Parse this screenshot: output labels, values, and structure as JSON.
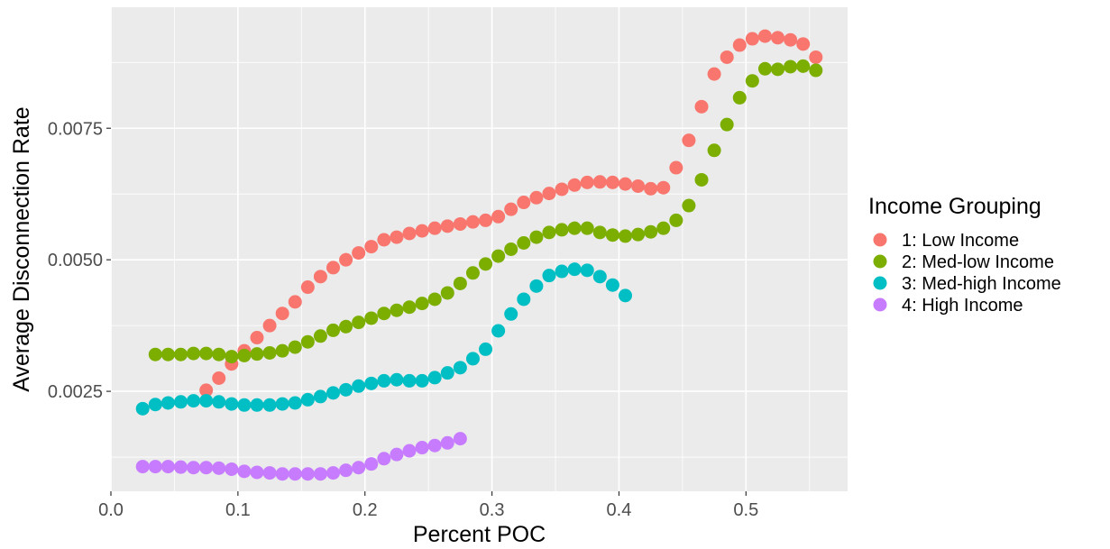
{
  "chart_data": {
    "type": "scatter",
    "xlabel": "Percent POC",
    "ylabel": "Average Disconnection Rate",
    "xlim": [
      0.0,
      0.58
    ],
    "ylim": [
      0.0006,
      0.0098
    ],
    "x_ticks": [
      0.0,
      0.1,
      0.2,
      0.3,
      0.4,
      0.5
    ],
    "x_tick_labels": [
      "0.0",
      "0.1",
      "0.2",
      "0.3",
      "0.4",
      "0.5"
    ],
    "y_ticks": [
      0.0025,
      0.005,
      0.0075
    ],
    "y_tick_labels": [
      "0.0025",
      "0.0050",
      "0.0075"
    ],
    "grid": true,
    "panel_background": "#ebebeb",
    "legend": {
      "title": "Income Grouping",
      "position": "right"
    },
    "series": [
      {
        "name": "1: Low Income",
        "color": "#f8766d",
        "x": [
          0.075,
          0.085,
          0.095,
          0.105,
          0.115,
          0.125,
          0.135,
          0.145,
          0.155,
          0.165,
          0.175,
          0.185,
          0.195,
          0.205,
          0.215,
          0.225,
          0.235,
          0.245,
          0.255,
          0.265,
          0.275,
          0.285,
          0.295,
          0.305,
          0.315,
          0.325,
          0.335,
          0.345,
          0.355,
          0.365,
          0.375,
          0.385,
          0.395,
          0.405,
          0.415,
          0.425,
          0.435,
          0.445,
          0.455,
          0.465,
          0.475,
          0.485,
          0.495,
          0.505,
          0.515,
          0.525,
          0.535,
          0.545,
          0.555
        ],
        "y": [
          0.00252,
          0.00275,
          0.00302,
          0.00327,
          0.00352,
          0.00375,
          0.00398,
          0.0042,
          0.00448,
          0.00468,
          0.00485,
          0.005,
          0.00513,
          0.00525,
          0.00538,
          0.00543,
          0.0055,
          0.00555,
          0.0056,
          0.00564,
          0.00568,
          0.00572,
          0.00575,
          0.00582,
          0.00596,
          0.00609,
          0.00618,
          0.00626,
          0.00634,
          0.00642,
          0.00647,
          0.00648,
          0.00647,
          0.00644,
          0.0064,
          0.00635,
          0.00637,
          0.00675,
          0.00727,
          0.00791,
          0.00853,
          0.00885,
          0.00908,
          0.0092,
          0.00925,
          0.00922,
          0.00918,
          0.0091,
          0.00885
        ]
      },
      {
        "name": "2: Med-low Income",
        "color": "#7cae00",
        "x": [
          0.035,
          0.045,
          0.055,
          0.065,
          0.075,
          0.085,
          0.095,
          0.105,
          0.115,
          0.125,
          0.135,
          0.145,
          0.155,
          0.165,
          0.175,
          0.185,
          0.195,
          0.205,
          0.215,
          0.225,
          0.235,
          0.245,
          0.255,
          0.265,
          0.275,
          0.285,
          0.295,
          0.305,
          0.315,
          0.325,
          0.335,
          0.345,
          0.355,
          0.365,
          0.375,
          0.385,
          0.395,
          0.405,
          0.415,
          0.425,
          0.435,
          0.445,
          0.455,
          0.465,
          0.475,
          0.485,
          0.495,
          0.505,
          0.515,
          0.525,
          0.535,
          0.545,
          0.555
        ],
        "y": [
          0.0032,
          0.0032,
          0.0032,
          0.00322,
          0.00322,
          0.0032,
          0.00316,
          0.00318,
          0.00321,
          0.00323,
          0.00327,
          0.00334,
          0.00344,
          0.00355,
          0.00366,
          0.00373,
          0.00381,
          0.00389,
          0.00398,
          0.00404,
          0.0041,
          0.00417,
          0.00425,
          0.00437,
          0.00455,
          0.00475,
          0.00492,
          0.00507,
          0.0052,
          0.00532,
          0.00543,
          0.00552,
          0.00557,
          0.0056,
          0.0056,
          0.00552,
          0.00547,
          0.00545,
          0.00548,
          0.00553,
          0.0056,
          0.00575,
          0.00603,
          0.00652,
          0.00708,
          0.00757,
          0.00808,
          0.0084,
          0.00863,
          0.00862,
          0.00867,
          0.00868,
          0.0086
        ]
      },
      {
        "name": "3: Med-high Income",
        "color": "#00bfc4",
        "x": [
          0.025,
          0.035,
          0.045,
          0.055,
          0.065,
          0.075,
          0.085,
          0.095,
          0.105,
          0.115,
          0.125,
          0.135,
          0.145,
          0.155,
          0.165,
          0.175,
          0.185,
          0.195,
          0.205,
          0.215,
          0.225,
          0.235,
          0.245,
          0.255,
          0.265,
          0.275,
          0.285,
          0.295,
          0.305,
          0.315,
          0.325,
          0.335,
          0.345,
          0.355,
          0.365,
          0.375,
          0.385,
          0.395,
          0.405
        ],
        "y": [
          0.00217,
          0.00225,
          0.00228,
          0.0023,
          0.00232,
          0.00232,
          0.0023,
          0.00226,
          0.00224,
          0.00224,
          0.00224,
          0.00226,
          0.00228,
          0.00234,
          0.0024,
          0.00247,
          0.00253,
          0.0026,
          0.00265,
          0.0027,
          0.00272,
          0.0027,
          0.0027,
          0.00276,
          0.00285,
          0.00295,
          0.00312,
          0.0033,
          0.00365,
          0.00397,
          0.00425,
          0.0045,
          0.0047,
          0.00478,
          0.00482,
          0.0048,
          0.00468,
          0.00452,
          0.00432
        ]
      },
      {
        "name": "4: High Income",
        "color": "#c77cff",
        "x": [
          0.025,
          0.035,
          0.045,
          0.055,
          0.065,
          0.075,
          0.085,
          0.095,
          0.105,
          0.115,
          0.125,
          0.135,
          0.145,
          0.155,
          0.165,
          0.175,
          0.185,
          0.195,
          0.205,
          0.215,
          0.225,
          0.235,
          0.245,
          0.255,
          0.265,
          0.275
        ],
        "y": [
          0.00107,
          0.00107,
          0.00107,
          0.00106,
          0.00105,
          0.00105,
          0.00104,
          0.00102,
          0.00098,
          0.00096,
          0.00095,
          0.00093,
          0.00093,
          0.00093,
          0.00093,
          0.00095,
          0.001,
          0.00105,
          0.00112,
          0.00122,
          0.0013,
          0.00137,
          0.00143,
          0.00147,
          0.00152,
          0.0016
        ]
      }
    ]
  }
}
